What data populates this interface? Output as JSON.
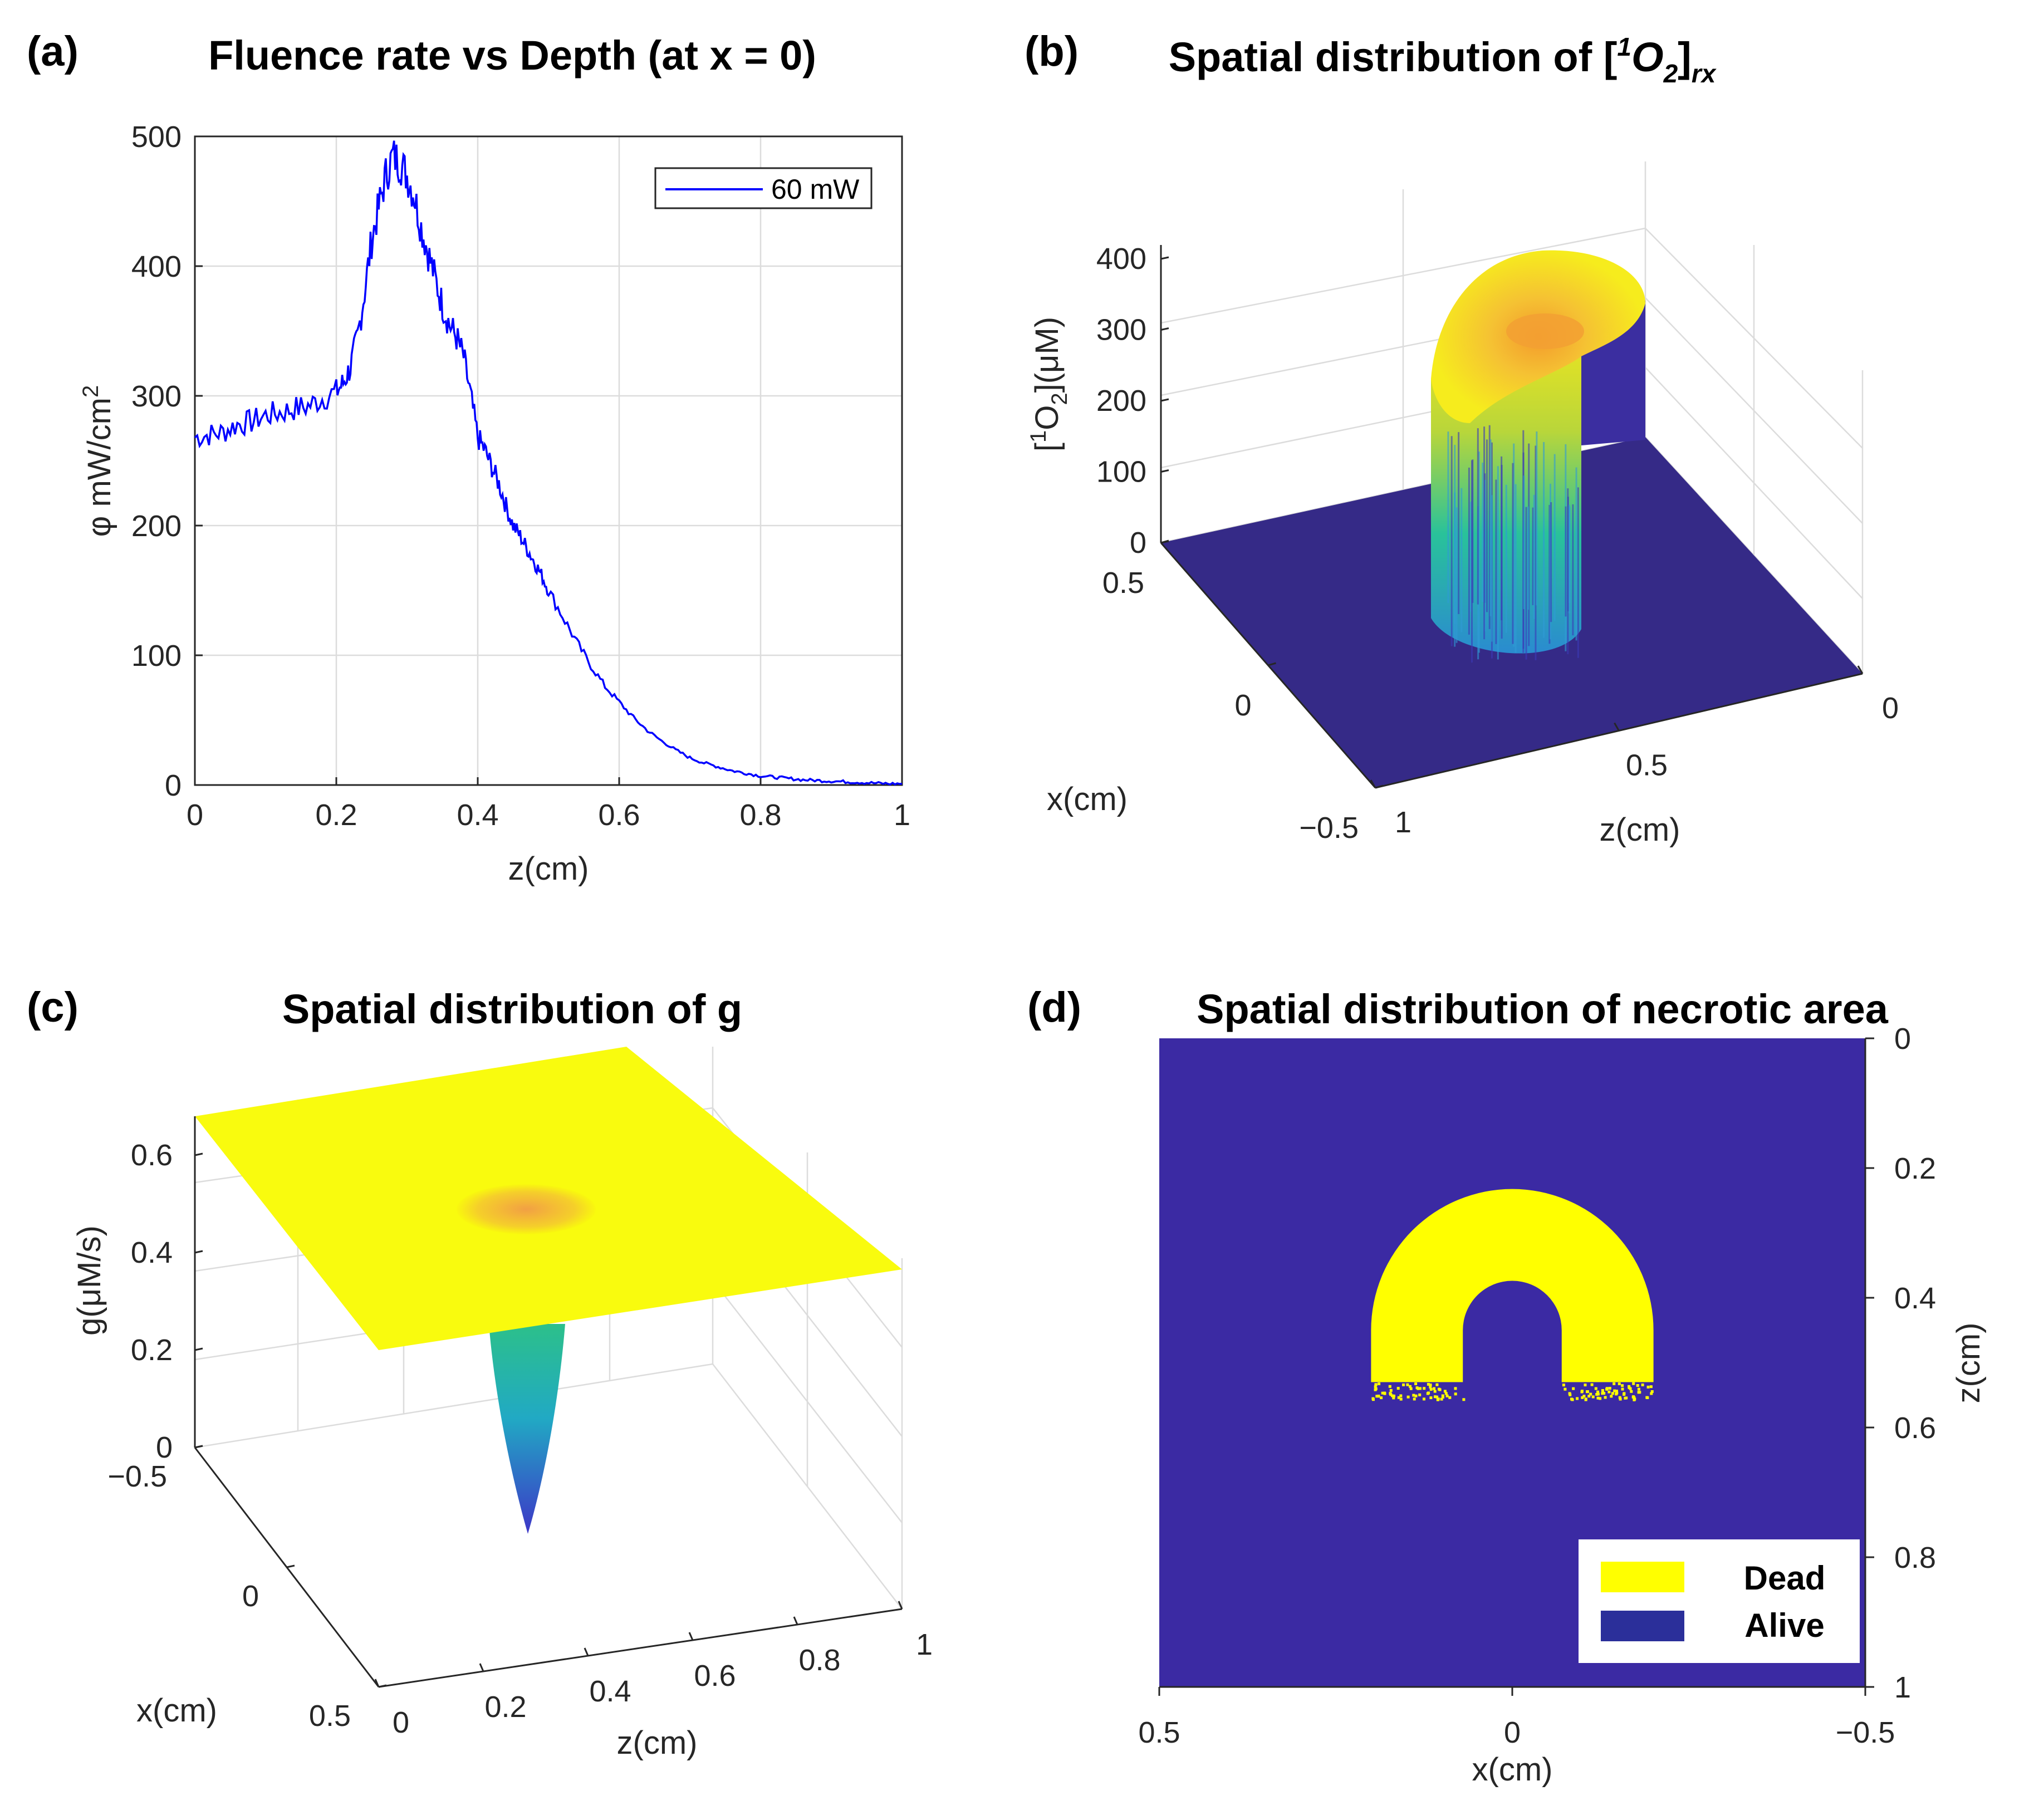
{
  "colors": {
    "series_line": "#0000ff",
    "surface_low": "#352a87",
    "surface_mid": "#1fb5a8",
    "surface_high": "#f9fb0e",
    "surface_warm": "#f5a93a",
    "alive": "#3b2aa3",
    "dead": "#ffff00"
  },
  "chart_data": [
    {
      "panel_label": "(a)",
      "type": "line",
      "title": "Fluence rate vs Depth (at x = 0)",
      "xlabel": "z(cm)",
      "ylabel": "φ mW/cm",
      "ylabel_sup": "2",
      "xlim": [
        0,
        1
      ],
      "ylim": [
        0,
        500
      ],
      "xticks": [
        "0",
        "0.2",
        "0.4",
        "0.6",
        "0.8",
        "1"
      ],
      "yticks": [
        "0",
        "100",
        "200",
        "300",
        "400",
        "500"
      ],
      "grid": true,
      "legend_position": "top-right",
      "series": [
        {
          "name": "60 mW",
          "x": [
            0,
            0.02,
            0.04,
            0.06,
            0.08,
            0.1,
            0.12,
            0.14,
            0.16,
            0.18,
            0.2,
            0.21,
            0.22,
            0.23,
            0.24,
            0.25,
            0.26,
            0.27,
            0.28,
            0.29,
            0.3,
            0.31,
            0.32,
            0.33,
            0.34,
            0.35,
            0.36,
            0.37,
            0.38,
            0.39,
            0.4,
            0.41,
            0.42,
            0.43,
            0.44,
            0.45,
            0.46,
            0.47,
            0.48,
            0.49,
            0.5,
            0.52,
            0.54,
            0.56,
            0.58,
            0.6,
            0.62,
            0.64,
            0.66,
            0.68,
            0.7,
            0.72,
            0.74,
            0.76,
            0.78,
            0.8,
            0.82,
            0.84,
            0.86,
            0.88,
            0.9,
            0.92,
            0.94,
            0.96,
            0.98,
            1.0
          ],
          "y": [
            268,
            270,
            272,
            278,
            280,
            285,
            287,
            290,
            292,
            298,
            303,
            310,
            322,
            345,
            380,
            420,
            445,
            470,
            485,
            480,
            470,
            455,
            430,
            410,
            390,
            370,
            355,
            345,
            330,
            300,
            268,
            258,
            245,
            232,
            215,
            200,
            192,
            182,
            172,
            162,
            150,
            130,
            110,
            92,
            76,
            64,
            52,
            42,
            34,
            27,
            21,
            17,
            14,
            11,
            9,
            7,
            6,
            5,
            4,
            3.5,
            3,
            2.5,
            2,
            1.5,
            1,
            1
          ]
        }
      ]
    },
    {
      "panel_label": "(b)",
      "type": "surface3d",
      "title_main": "Spatial distribution of [",
      "title_sup": "1",
      "title_o": "O",
      "title_sub2": "2",
      "title_close": "]",
      "title_sub": "rx",
      "zlabel_open": "[",
      "zlabel_sup": "1",
      "zlabel_o": "O",
      "zlabel_sub": "2",
      "zlabel_rest": "](μM)",
      "xlabel": "x(cm)",
      "ylabel": "z(cm)",
      "zticks": [
        "0",
        "100",
        "200",
        "300",
        "400"
      ],
      "xticks": [
        "0.5",
        "0",
        "−0.5"
      ],
      "yticks": [
        "1",
        "0.5",
        "0"
      ],
      "zlim": [
        0,
        400
      ],
      "ring_inner_radius_cm": 0.07,
      "ring_outer_radius_cm": 0.2,
      "ring_center_z_cm": 0.45,
      "peak_value": 400
    },
    {
      "panel_label": "(c)",
      "type": "surface3d",
      "title": "Spatial distribution of g",
      "zlabel": "g(μM/s)",
      "xlabel": "x(cm)",
      "ylabel": "z(cm)",
      "zticks": [
        "0",
        "0.2",
        "0.4",
        "0.6"
      ],
      "xticks": [
        "−0.5",
        "0",
        "0.5"
      ],
      "yticks": [
        "0",
        "0.2",
        "0.4",
        "0.6",
        "0.8",
        "1"
      ],
      "zlim": [
        0,
        0.7
      ],
      "plateau_value": 0.67,
      "well_min_value": 0.0,
      "well_center_z_cm": 0.28
    },
    {
      "panel_label": "(d)",
      "type": "heatmap",
      "title": "Spatial distribution of necrotic area",
      "xlabel": "x(cm)",
      "ylabel": "z(cm)",
      "xticks": [
        "0.5",
        "0",
        "−0.5"
      ],
      "yticks": [
        "0",
        "0.2",
        "0.4",
        "0.6",
        "0.8",
        "1"
      ],
      "xlim": [
        0.5,
        -0.5
      ],
      "ylim": [
        0,
        1
      ],
      "legend_position": "bottom-right",
      "legend": [
        "Dead",
        "Alive"
      ],
      "dead_ring_inner_radius_cm": 0.07,
      "dead_ring_outer_radius_cm": 0.2,
      "dead_ring_center_z_cm": 0.45
    }
  ]
}
